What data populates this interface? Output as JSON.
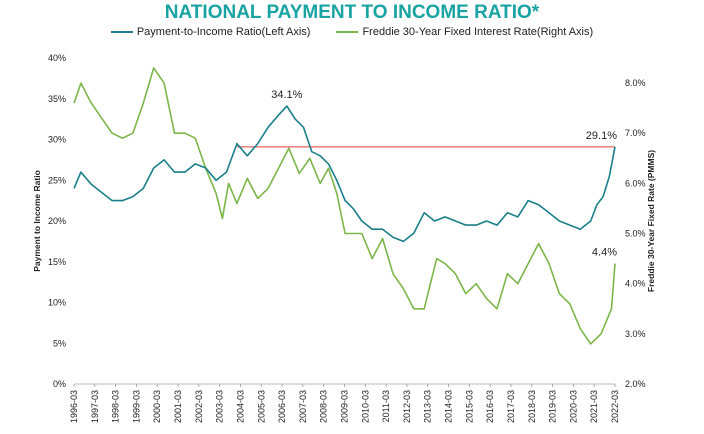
{
  "colors": {
    "title": "#1aa3a3",
    "pti": "#1a7f8a",
    "rate": "#7cb548",
    "reference_line": "#e03a3a"
  },
  "chart_data": {
    "type": "line",
    "title": "NATIONAL PAYMENT TO INCOME RATIO*",
    "xlabel": "",
    "ylabel": "Payment to Income Ratio",
    "y2label": "Freddie 30-Year Fixed Rate (PMMS)",
    "ylim": [
      0,
      40
    ],
    "y2lim": [
      2.0,
      8.5
    ],
    "yticks": [
      0,
      5,
      10,
      15,
      20,
      25,
      30,
      35,
      40
    ],
    "yticklabels": [
      "0%",
      "5%",
      "10%",
      "15%",
      "20%",
      "25%",
      "30%",
      "35%",
      "40%"
    ],
    "y2ticks": [
      2.0,
      3.0,
      4.0,
      5.0,
      6.0,
      7.0,
      8.0
    ],
    "y2ticklabels": [
      "2.0%",
      "3.0%",
      "4.0%",
      "5.0%",
      "6.0%",
      "7.0%",
      "8.0%"
    ],
    "xlim": [
      1996.17,
      2022.17
    ],
    "xticks": [
      1996.17,
      1997.17,
      1998.17,
      1999.17,
      2000.17,
      2001.17,
      2002.17,
      2003.17,
      2004.17,
      2005.17,
      2006.17,
      2007.17,
      2008.17,
      2009.17,
      2010.17,
      2011.17,
      2012.17,
      2013.17,
      2014.17,
      2015.17,
      2016.17,
      2017.17,
      2018.17,
      2019.17,
      2020.17,
      2021.17,
      2022.17
    ],
    "xticklabels": [
      "1996-03",
      "1997-03",
      "1998-03",
      "1999-03",
      "2000-03",
      "2001-03",
      "2002-03",
      "2003-03",
      "2004-03",
      "2005-03",
      "2006-03",
      "2007-03",
      "2008-03",
      "2009-03",
      "2010-03",
      "2011-03",
      "2012-03",
      "2013-03",
      "2014-03",
      "2015-03",
      "2016-03",
      "2017-03",
      "2018-03",
      "2019-03",
      "2020-03",
      "2021-03",
      "2022-03"
    ],
    "legend_position": "top-center",
    "series": [
      {
        "name": "Payment-to-Income Ratio(Left Axis)",
        "axis": "left",
        "x": [
          1996.17,
          1996.5,
          1997.0,
          1997.5,
          1998.0,
          1998.5,
          1999.0,
          1999.5,
          2000.0,
          2000.5,
          2001.0,
          2001.5,
          2002.0,
          2002.5,
          2003.0,
          2003.5,
          2004.0,
          2004.5,
          2005.0,
          2005.5,
          2006.0,
          2006.4,
          2006.8,
          2007.2,
          2007.6,
          2008.0,
          2008.4,
          2008.8,
          2009.2,
          2009.6,
          2010.0,
          2010.5,
          2011.0,
          2011.5,
          2012.0,
          2012.5,
          2013.0,
          2013.5,
          2014.0,
          2014.5,
          2015.0,
          2015.5,
          2016.0,
          2016.5,
          2017.0,
          2017.5,
          2018.0,
          2018.5,
          2019.0,
          2019.5,
          2020.0,
          2020.5,
          2021.0,
          2021.3,
          2021.6,
          2021.9,
          2022.17
        ],
        "y": [
          24.0,
          26.0,
          24.5,
          23.5,
          22.5,
          22.5,
          23.0,
          24.0,
          26.5,
          27.5,
          26.0,
          26.0,
          27.0,
          26.5,
          25.0,
          26.0,
          29.5,
          28.0,
          29.5,
          31.5,
          33.0,
          34.1,
          32.5,
          31.5,
          28.5,
          28.0,
          27.0,
          25.0,
          22.5,
          21.5,
          20.0,
          19.0,
          19.0,
          18.0,
          17.5,
          18.5,
          21.0,
          20.0,
          20.5,
          20.0,
          19.5,
          19.5,
          20.0,
          19.5,
          21.0,
          20.5,
          22.5,
          22.0,
          21.0,
          20.0,
          19.5,
          19.0,
          20.0,
          22.0,
          23.0,
          25.5,
          29.1
        ]
      },
      {
        "name": "Freddie 30-Year Fixed Interest Rate(Right Axis)",
        "axis": "right",
        "x": [
          1996.17,
          1996.5,
          1997.0,
          1997.5,
          1998.0,
          1998.5,
          1999.0,
          1999.5,
          2000.0,
          2000.5,
          2001.0,
          2001.5,
          2002.0,
          2002.5,
          2003.0,
          2003.3,
          2003.6,
          2004.0,
          2004.5,
          2005.0,
          2005.5,
          2006.0,
          2006.5,
          2007.0,
          2007.5,
          2008.0,
          2008.4,
          2008.8,
          2009.2,
          2009.6,
          2010.0,
          2010.5,
          2011.0,
          2011.5,
          2012.0,
          2012.5,
          2013.0,
          2013.3,
          2013.6,
          2014.0,
          2014.5,
          2015.0,
          2015.5,
          2016.0,
          2016.5,
          2017.0,
          2017.5,
          2018.0,
          2018.5,
          2019.0,
          2019.5,
          2020.0,
          2020.5,
          2021.0,
          2021.5,
          2022.0,
          2022.17
        ],
        "y": [
          7.6,
          8.0,
          7.6,
          7.3,
          7.0,
          6.9,
          7.0,
          7.6,
          8.3,
          8.0,
          7.0,
          7.0,
          6.9,
          6.3,
          5.8,
          5.3,
          6.0,
          5.6,
          6.1,
          5.7,
          5.9,
          6.3,
          6.7,
          6.2,
          6.5,
          6.0,
          6.3,
          5.8,
          5.0,
          5.0,
          5.0,
          4.5,
          4.9,
          4.2,
          3.9,
          3.5,
          3.5,
          4.0,
          4.5,
          4.4,
          4.2,
          3.8,
          4.0,
          3.7,
          3.5,
          4.2,
          4.0,
          4.4,
          4.8,
          4.4,
          3.8,
          3.6,
          3.1,
          2.8,
          3.0,
          3.5,
          4.4
        ]
      }
    ],
    "annotations": [
      {
        "text": "34.1%",
        "x": 2006.4,
        "y": 34.1,
        "axis": "left"
      },
      {
        "text": "29.1%",
        "x": 2022.17,
        "y": 29.1,
        "axis": "left"
      },
      {
        "text": "4.4%",
        "x": 2022.17,
        "y": 4.4,
        "axis": "right"
      }
    ],
    "reference_line": {
      "y": 29.1,
      "axis": "left",
      "x_start": 2004.0,
      "x_end": 2022.17
    }
  }
}
